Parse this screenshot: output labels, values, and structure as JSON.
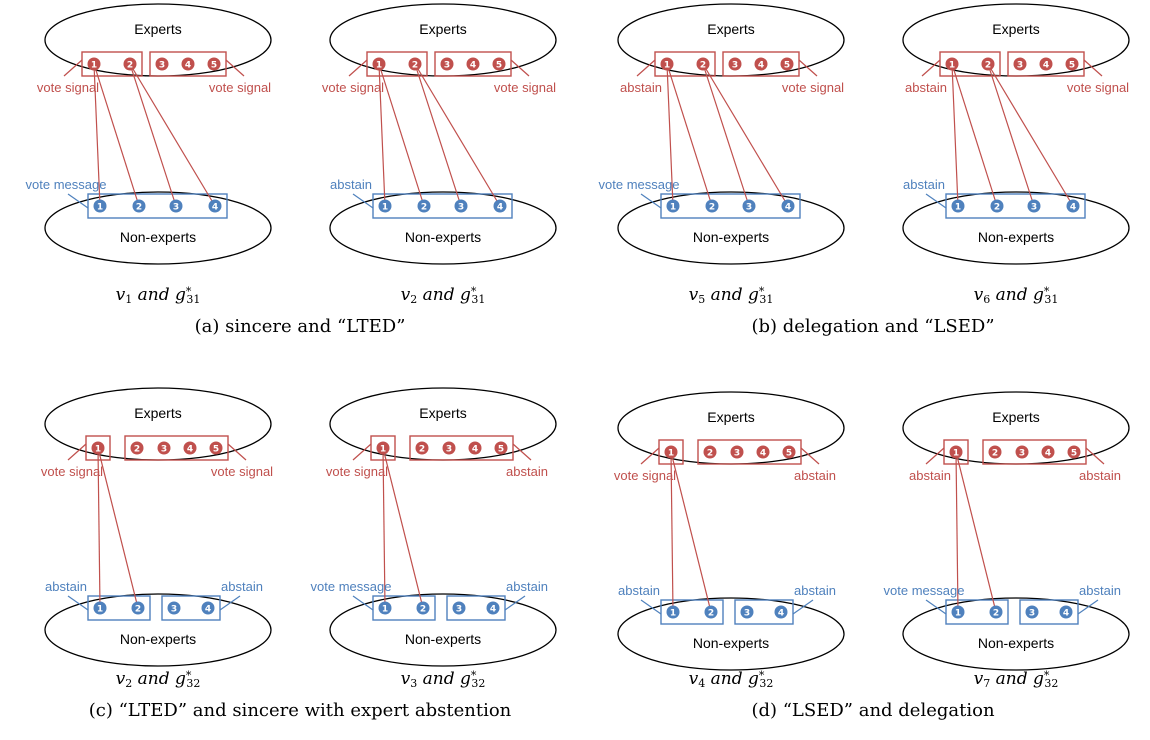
{
  "labels": {
    "experts": "Experts",
    "non_experts": "Non-experts",
    "vote_signal": "vote signal",
    "vote_message": "vote message",
    "abstain": "abstain"
  },
  "colors": {
    "expert": "#c0504d",
    "nonexpert": "#4f81bd"
  },
  "captions": [
    "(a) sincere and “LTED”",
    "(b) delegation and “LSED”",
    "(c) “LTED” and sincere with expert abstention",
    "(d) “LSED” and delegation"
  ],
  "panels": [
    {
      "v": "1",
      "g": "31",
      "expert_groups": [
        [
          1,
          2
        ],
        [
          3,
          4,
          5
        ]
      ],
      "nonexpert_groups": [
        [
          1,
          2,
          3,
          4
        ]
      ],
      "expert_left": "vote_signal",
      "expert_right": "vote_signal",
      "nonexpert_left": "vote_message",
      "nonexpert_right": null,
      "edges": [
        [
          1,
          1
        ],
        [
          1,
          2
        ],
        [
          2,
          3
        ],
        [
          2,
          4
        ]
      ]
    },
    {
      "v": "2",
      "g": "31",
      "expert_groups": [
        [
          1,
          2
        ],
        [
          3,
          4,
          5
        ]
      ],
      "nonexpert_groups": [
        [
          1,
          2,
          3,
          4
        ]
      ],
      "expert_left": "vote_signal",
      "expert_right": "vote_signal",
      "nonexpert_left": "abstain",
      "nonexpert_right": null,
      "edges": [
        [
          1,
          1
        ],
        [
          1,
          2
        ],
        [
          2,
          3
        ],
        [
          2,
          4
        ]
      ]
    },
    {
      "v": "5",
      "g": "31",
      "expert_groups": [
        [
          1,
          2
        ],
        [
          3,
          4,
          5
        ]
      ],
      "nonexpert_groups": [
        [
          1,
          2,
          3,
          4
        ]
      ],
      "expert_left": "abstain",
      "expert_right": "vote_signal",
      "nonexpert_left": "vote_message",
      "nonexpert_right": null,
      "edges": [
        [
          1,
          1
        ],
        [
          1,
          2
        ],
        [
          2,
          3
        ],
        [
          2,
          4
        ]
      ]
    },
    {
      "v": "6",
      "g": "31",
      "expert_groups": [
        [
          1,
          2
        ],
        [
          3,
          4,
          5
        ]
      ],
      "nonexpert_groups": [
        [
          1,
          2,
          3,
          4
        ]
      ],
      "expert_left": "abstain",
      "expert_right": "vote_signal",
      "nonexpert_left": "abstain",
      "nonexpert_right": null,
      "edges": [
        [
          1,
          1
        ],
        [
          1,
          2
        ],
        [
          2,
          3
        ],
        [
          2,
          4
        ]
      ]
    },
    {
      "v": "2",
      "g": "32",
      "expert_groups": [
        [
          1
        ],
        [
          2,
          3,
          4,
          5
        ]
      ],
      "nonexpert_groups": [
        [
          1,
          2
        ],
        [
          3,
          4
        ]
      ],
      "expert_left": "vote_signal",
      "expert_right": "vote_signal",
      "nonexpert_left": "abstain",
      "nonexpert_right": "abstain",
      "edges": [
        [
          1,
          1
        ],
        [
          1,
          2
        ]
      ]
    },
    {
      "v": "3",
      "g": "32",
      "expert_groups": [
        [
          1
        ],
        [
          2,
          3,
          4,
          5
        ]
      ],
      "nonexpert_groups": [
        [
          1,
          2
        ],
        [
          3,
          4
        ]
      ],
      "expert_left": "vote_signal",
      "expert_right": "abstain",
      "nonexpert_left": "vote_message",
      "nonexpert_right": "abstain",
      "edges": [
        [
          1,
          1
        ],
        [
          1,
          2
        ]
      ]
    },
    {
      "v": "4",
      "g": "32",
      "expert_groups": [
        [
          1
        ],
        [
          2,
          3,
          4,
          5
        ]
      ],
      "nonexpert_groups": [
        [
          1,
          2
        ],
        [
          3,
          4
        ]
      ],
      "expert_left": "vote_signal",
      "expert_right": "abstain",
      "nonexpert_left": "abstain",
      "nonexpert_right": "abstain",
      "edges": [
        [
          1,
          1
        ],
        [
          1,
          2
        ]
      ]
    },
    {
      "v": "7",
      "g": "32",
      "expert_groups": [
        [
          1
        ],
        [
          2,
          3,
          4,
          5
        ]
      ],
      "nonexpert_groups": [
        [
          1,
          2
        ],
        [
          3,
          4
        ]
      ],
      "expert_left": "abstain",
      "expert_right": "abstain",
      "nonexpert_left": "vote_message",
      "nonexpert_right": "abstain",
      "edges": [
        [
          1,
          1
        ],
        [
          1,
          2
        ]
      ]
    }
  ]
}
